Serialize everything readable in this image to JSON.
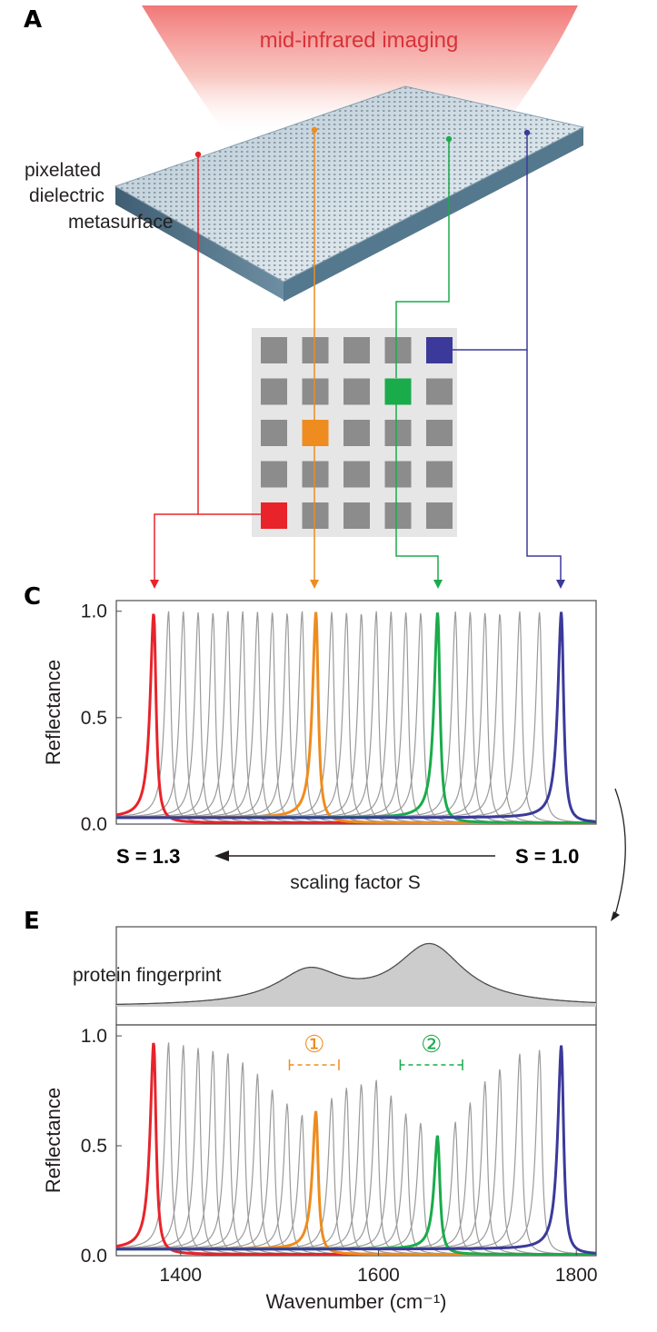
{
  "panels": {
    "a": "A",
    "c": "C",
    "e": "E"
  },
  "panel_a": {
    "imaging_label": "mid-infrared imaging",
    "metasurface_label": [
      "pixelated",
      "dielectric",
      "metasurface"
    ],
    "pixel_grid": {
      "rows": 5,
      "cols": 5
    },
    "highlighted_pixels": [
      {
        "name": "red",
        "row": 4,
        "col": 0,
        "color": "#e8232a"
      },
      {
        "name": "orange",
        "row": 2,
        "col": 1,
        "color": "#ee8c1f"
      },
      {
        "name": "green",
        "row": 1,
        "col": 3,
        "color": "#1aab4b"
      },
      {
        "name": "blue",
        "row": 0,
        "col": 4,
        "color": "#3b3a9a"
      }
    ]
  },
  "scaling": {
    "left_label": "S = 1.3",
    "right_label": "S = 1.0",
    "axis_label": "scaling factor S",
    "left_color": "#e8232a",
    "right_color": "#3b3a9a"
  },
  "protein": {
    "label": "protein fingerprint",
    "peaks": [
      {
        "center": 1530,
        "height": 0.55,
        "width": 40
      },
      {
        "center": 1652,
        "height": 1.0,
        "width": 42
      }
    ]
  },
  "annotations": [
    {
      "label": "①",
      "from": 1510,
      "to": 1560,
      "color": "#ee8c1f"
    },
    {
      "label": "②",
      "from": 1622,
      "to": 1685,
      "color": "#1aab4b"
    }
  ],
  "chart_data": [
    {
      "panel": "C",
      "type": "line",
      "xlabel": "",
      "ylabel": "Reflectance",
      "xlim": [
        1335,
        1820
      ],
      "ylim": [
        0,
        1.05
      ],
      "yticks": [
        "0.0",
        "0.5",
        "1.0"
      ],
      "ytick_values": [
        0,
        0.5,
        1.0
      ],
      "resonance_width": 4.5,
      "background": 0.03,
      "gray_resonances": [
        {
          "center": 1388,
          "peak": 1.0
        },
        {
          "center": 1403,
          "peak": 1.0
        },
        {
          "center": 1418,
          "peak": 1.0
        },
        {
          "center": 1433,
          "peak": 1.0
        },
        {
          "center": 1448,
          "peak": 1.0
        },
        {
          "center": 1463,
          "peak": 1.0
        },
        {
          "center": 1478,
          "peak": 1.0
        },
        {
          "center": 1493,
          "peak": 1.0
        },
        {
          "center": 1508,
          "peak": 1.0
        },
        {
          "center": 1523,
          "peak": 1.0
        },
        {
          "center": 1553,
          "peak": 1.0
        },
        {
          "center": 1568,
          "peak": 1.0
        },
        {
          "center": 1583,
          "peak": 1.0
        },
        {
          "center": 1598,
          "peak": 1.0
        },
        {
          "center": 1613,
          "peak": 1.0
        },
        {
          "center": 1628,
          "peak": 1.0
        },
        {
          "center": 1643,
          "peak": 1.0
        },
        {
          "center": 1678,
          "peak": 1.0
        },
        {
          "center": 1693,
          "peak": 1.0
        },
        {
          "center": 1708,
          "peak": 1.0
        },
        {
          "center": 1723,
          "peak": 1.0
        },
        {
          "center": 1743,
          "peak": 1.0
        },
        {
          "center": 1763,
          "peak": 1.0
        }
      ],
      "series": [
        {
          "color": "#e8232a",
          "center": 1373,
          "peak": 1.0
        },
        {
          "color": "#ee8c1f",
          "center": 1537,
          "peak": 1.0
        },
        {
          "color": "#1aab4b",
          "center": 1660,
          "peak": 1.0
        },
        {
          "color": "#3b3a9a",
          "center": 1785,
          "peak": 1.0
        }
      ]
    },
    {
      "panel": "E",
      "type": "line",
      "xlabel": "Wavenumber (cm⁻¹)",
      "ylabel": "Reflectance",
      "xlim": [
        1335,
        1820
      ],
      "ylim": [
        0,
        1.05
      ],
      "xticks": [
        "1400",
        "1600",
        "1800"
      ],
      "xtick_values": [
        1400,
        1600,
        1800
      ],
      "yticks": [
        "0.0",
        "0.5",
        "1.0"
      ],
      "ytick_values": [
        0,
        0.5,
        1.0
      ],
      "resonance_width": 4.5,
      "background": 0.03,
      "gray_resonances": [
        {
          "center": 1388,
          "peak": 0.97
        },
        {
          "center": 1403,
          "peak": 0.96
        },
        {
          "center": 1418,
          "peak": 0.95
        },
        {
          "center": 1433,
          "peak": 0.94
        },
        {
          "center": 1448,
          "peak": 0.92
        },
        {
          "center": 1463,
          "peak": 0.88
        },
        {
          "center": 1478,
          "peak": 0.83
        },
        {
          "center": 1493,
          "peak": 0.76
        },
        {
          "center": 1508,
          "peak": 0.7
        },
        {
          "center": 1523,
          "peak": 0.64
        },
        {
          "center": 1553,
          "peak": 0.72
        },
        {
          "center": 1568,
          "peak": 0.77
        },
        {
          "center": 1583,
          "peak": 0.79
        },
        {
          "center": 1598,
          "peak": 0.8
        },
        {
          "center": 1613,
          "peak": 0.73
        },
        {
          "center": 1628,
          "peak": 0.65
        },
        {
          "center": 1643,
          "peak": 0.61
        },
        {
          "center": 1678,
          "peak": 0.61
        },
        {
          "center": 1693,
          "peak": 0.7
        },
        {
          "center": 1708,
          "peak": 0.8
        },
        {
          "center": 1723,
          "peak": 0.86
        },
        {
          "center": 1743,
          "peak": 0.92
        },
        {
          "center": 1763,
          "peak": 0.94
        }
      ],
      "series": [
        {
          "color": "#e8232a",
          "center": 1373,
          "peak": 0.98
        },
        {
          "color": "#ee8c1f",
          "center": 1537,
          "peak": 0.66
        },
        {
          "color": "#1aab4b",
          "center": 1660,
          "peak": 0.55
        },
        {
          "color": "#3b3a9a",
          "center": 1785,
          "peak": 0.96
        }
      ]
    }
  ]
}
